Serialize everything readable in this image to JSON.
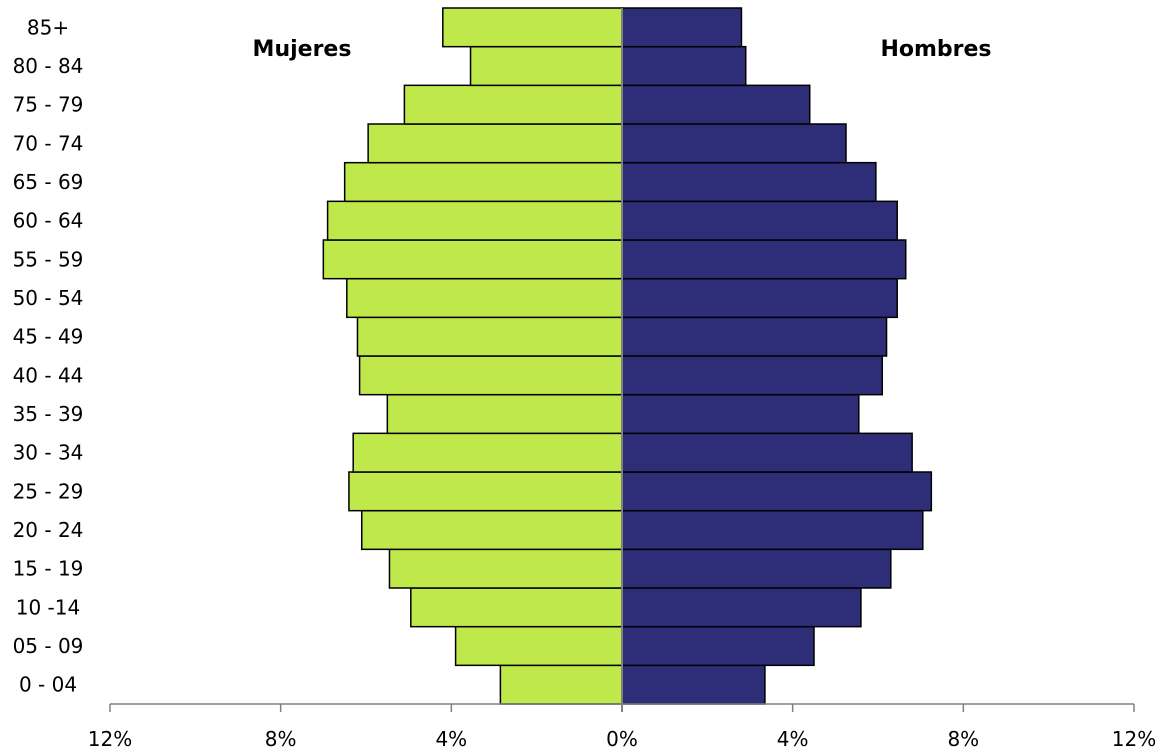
{
  "chart_data": {
    "type": "bar",
    "orientation": "horizontal",
    "subtype": "population-pyramid",
    "categories": [
      "0 - 04",
      "05 - 09",
      "10 -14",
      "15 - 19",
      "20 - 24",
      "25 - 29",
      "30 - 34",
      "35 - 39",
      "40 - 44",
      "45 - 49",
      "50 - 54",
      "55 - 59",
      "60 - 64",
      "65 - 69",
      "70 - 74",
      "75 - 79",
      "80 - 84",
      "85+"
    ],
    "series": [
      {
        "name": "Mujeres",
        "side": "left",
        "color": "#bfe94b",
        "values": [
          2.85,
          3.9,
          4.95,
          5.45,
          6.1,
          6.4,
          6.3,
          5.5,
          6.15,
          6.2,
          6.45,
          7.0,
          6.9,
          6.5,
          5.95,
          5.1,
          3.55,
          4.2
        ]
      },
      {
        "name": "Hombres",
        "side": "right",
        "color": "#2e2d78",
        "values": [
          3.35,
          4.5,
          5.6,
          6.3,
          7.05,
          7.25,
          6.8,
          5.55,
          6.1,
          6.2,
          6.45,
          6.65,
          6.45,
          5.95,
          5.25,
          4.4,
          2.9,
          2.8
        ]
      }
    ],
    "xlim": [
      -12,
      12
    ],
    "xticks": [
      {
        "value": -12,
        "label": "12%"
      },
      {
        "value": -8,
        "label": "8%"
      },
      {
        "value": -4,
        "label": "4%"
      },
      {
        "value": 0,
        "label": "0%"
      },
      {
        "value": 4,
        "label": "4%"
      },
      {
        "value": 8,
        "label": "8%"
      },
      {
        "value": 12,
        "label": "12%"
      }
    ],
    "grid": false,
    "legend": "top-left and top-right labels"
  }
}
